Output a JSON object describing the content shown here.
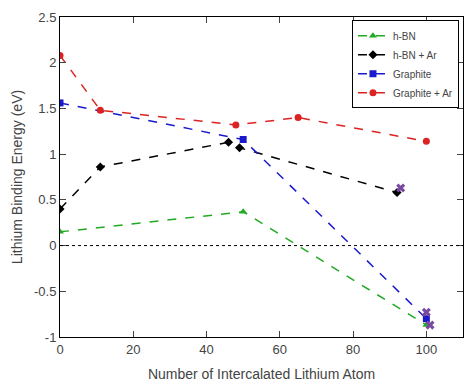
{
  "chart_data": {
    "type": "line",
    "xlabel": "Number of Intercalated Lithium Atom",
    "ylabel": "Lithium Binding Energy (eV)",
    "xlim": [
      0,
      110
    ],
    "xticks": [
      0,
      20,
      40,
      60,
      80,
      100
    ],
    "ylim": [
      -1,
      2.5
    ],
    "yticks": [
      -1,
      -0.5,
      0,
      0.5,
      1,
      1.5,
      2,
      2.5
    ],
    "grid": false,
    "legend": "top right",
    "hline": 0,
    "series": [
      {
        "name": "h-BN",
        "color": "#22aa22",
        "marker": "triangle-up",
        "line_style": "dash",
        "x": [
          0,
          50,
          100
        ],
        "values": [
          0.15,
          0.37,
          -0.87
        ]
      },
      {
        "name": "h-BN + Ar",
        "color": "#000000",
        "marker": "diamond",
        "line_style": "dash",
        "x": [
          0,
          11,
          46,
          49,
          92
        ],
        "values": [
          0.4,
          0.86,
          1.13,
          1.07,
          0.58
        ]
      },
      {
        "name": "Graphite",
        "color": "#1a1acc",
        "marker": "square",
        "line_style": "dash",
        "x": [
          0,
          50,
          100
        ],
        "values": [
          1.56,
          1.16,
          -0.8
        ]
      },
      {
        "name": "Graphite + Ar",
        "color": "#dd2222",
        "marker": "circle",
        "line_style": "dash",
        "x": [
          0,
          11,
          48,
          65,
          100
        ],
        "values": [
          2.08,
          1.48,
          1.32,
          1.4,
          1.14
        ]
      },
      {
        "type": "scatter",
        "color": "#7a4aa0",
        "marker": "x",
        "x": [
          93,
          100,
          101
        ],
        "values": [
          0.63,
          -0.73,
          -0.87
        ]
      }
    ]
  }
}
